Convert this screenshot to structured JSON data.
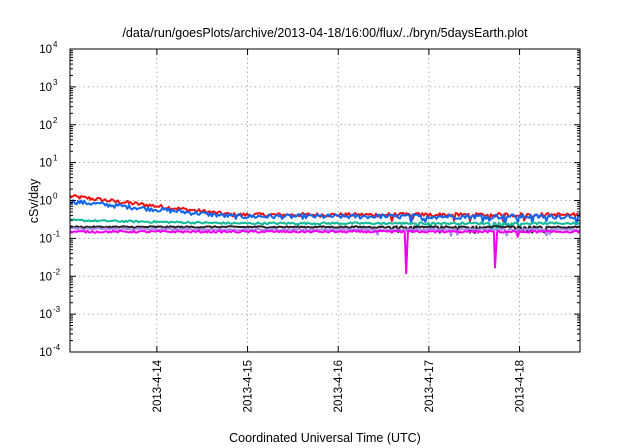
{
  "chart_data": {
    "type": "line",
    "title": "/data/run/goesPlots/archive/2013-04-18/16:00/flux/../bryn/5daysEarth.plot",
    "xlabel": "Coordinated Universal Time (UTC)",
    "ylabel": "cSv/day",
    "yscale": "log",
    "ylim": [
      0.0001,
      10000
    ],
    "y_ticks": [
      {
        "base": "10",
        "exp": "-4",
        "value": 0.0001
      },
      {
        "base": "10",
        "exp": "-3",
        "value": 0.001
      },
      {
        "base": "10",
        "exp": "-2",
        "value": 0.01
      },
      {
        "base": "10",
        "exp": "-1",
        "value": 0.1
      },
      {
        "base": "10",
        "exp": "0",
        "value": 1
      },
      {
        "base": "10",
        "exp": "1",
        "value": 10
      },
      {
        "base": "10",
        "exp": "2",
        "value": 100
      },
      {
        "base": "10",
        "exp": "3",
        "value": 1000
      },
      {
        "base": "10",
        "exp": "4",
        "value": 10000
      }
    ],
    "xlim": [
      "2013-04-13 01:00",
      "2013-04-18 16:00"
    ],
    "x_ticks": [
      {
        "label": "2013-4-14",
        "value": "2013-04-14 00:00"
      },
      {
        "label": "2013-4-15",
        "value": "2013-04-15 00:00"
      },
      {
        "label": "2013-4-16",
        "value": "2013-04-16 00:00"
      },
      {
        "label": "2013-4-17",
        "value": "2013-04-17 00:00"
      },
      {
        "label": "2013-4-18",
        "value": "2013-04-18 00:00"
      }
    ],
    "grid": true,
    "series": [
      {
        "color": "#ee1111",
        "start": 1.3,
        "end": 0.42,
        "noise": 0.12,
        "dips": []
      },
      {
        "color": "#1166ee",
        "start": 0.95,
        "end": 0.38,
        "noise": 0.14,
        "dips": []
      },
      {
        "color": "#11bb99",
        "start": 0.3,
        "end": 0.25,
        "noise": 0.06,
        "dips": []
      },
      {
        "color": "#222222",
        "start": 0.2,
        "end": 0.2,
        "noise": 0.05,
        "dips": []
      },
      {
        "color": "#aa88ee",
        "start": 0.18,
        "end": 0.17,
        "noise": 0.05,
        "dips": []
      },
      {
        "color": "#ee00ee",
        "start": 0.15,
        "end": 0.15,
        "noise": 0.06,
        "dips": [
          {
            "x": "2013-04-16 18:00",
            "value": 0.012
          },
          {
            "x": "2013-04-17 17:30",
            "value": 0.017
          }
        ]
      }
    ]
  }
}
